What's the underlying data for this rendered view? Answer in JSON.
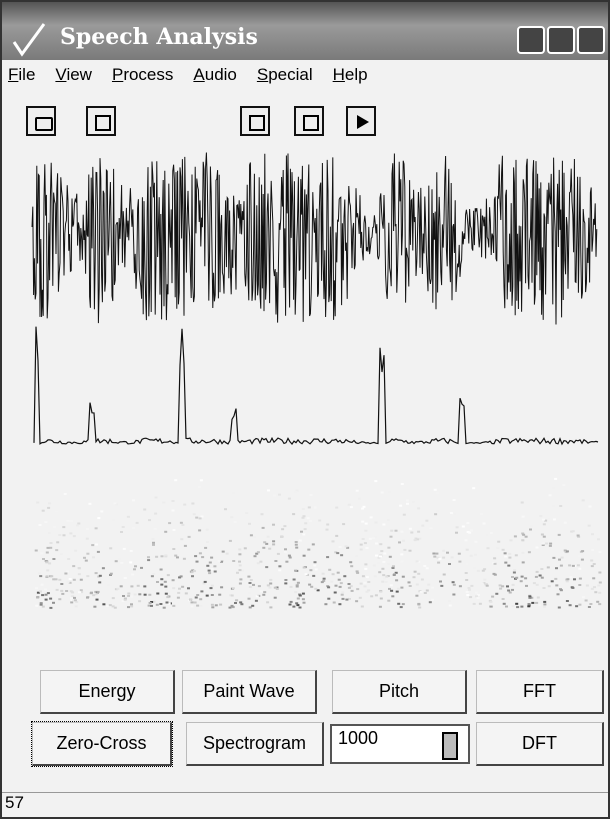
{
  "window": {
    "title": "Speech Analysis"
  },
  "menu": [
    "File",
    "View",
    "Process",
    "Audio",
    "Special",
    "Help"
  ],
  "buttons": {
    "row1": [
      "Energy",
      "Paint Wave",
      "Pitch",
      "FFT"
    ],
    "row2": [
      "Zero-Cross",
      "Spectrogram",
      "DFT"
    ]
  },
  "spin_value": 1000,
  "status": "57"
}
